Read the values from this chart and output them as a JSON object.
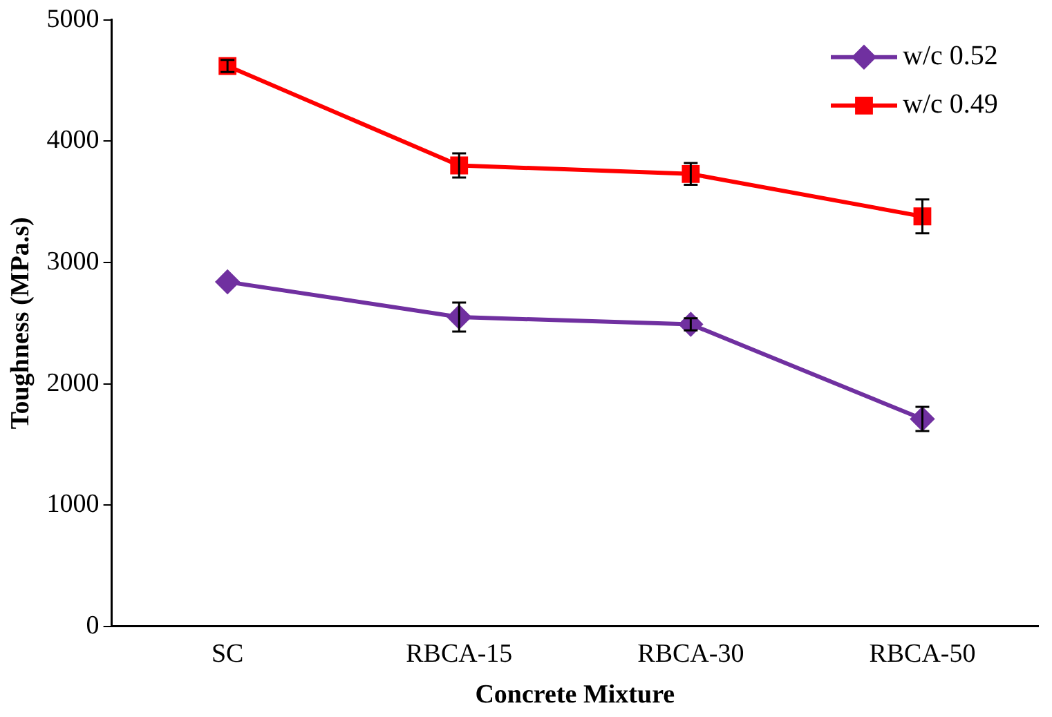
{
  "chart_data": {
    "type": "line",
    "xlabel": "Concrete Mixture",
    "ylabel": "Toughness (MPa.s)",
    "categories": [
      "SC",
      "RBCA-15",
      "RBCA-30",
      "RBCA-50"
    ],
    "series": [
      {
        "name": "w/c 0.52",
        "color": "#7030a0",
        "marker": "diamond",
        "values": [
          2840,
          2550,
          2490,
          1710
        ],
        "errors": [
          null,
          120,
          50,
          100
        ]
      },
      {
        "name": "w/c 0.49",
        "color": "#ff0000",
        "marker": "square",
        "values": [
          4620,
          3800,
          3730,
          3380
        ],
        "errors": [
          50,
          100,
          90,
          140
        ]
      }
    ],
    "ylim": [
      0,
      5000
    ],
    "yticks": [
      0,
      1000,
      2000,
      3000,
      4000,
      5000
    ],
    "grid": false,
    "legend": "top right"
  }
}
